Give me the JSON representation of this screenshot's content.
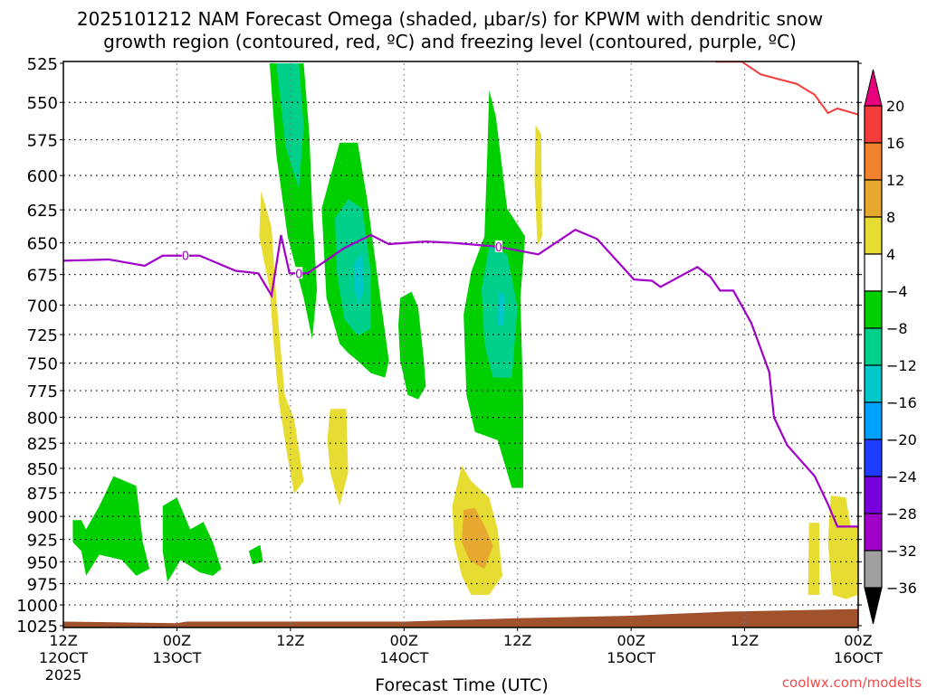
{
  "chart_data": {
    "type": "area",
    "title_line1": "2025101212 NAM Forecast Omega (shaded, μbar/s) for KPWM with dendritic snow",
    "title_line2": "growth region (contoured, red, ºC) and freezing level (contoured, purple, ºC)",
    "xlabel": "Forecast Time (UTC)",
    "credit": "coolwx.com/modelts",
    "xlim_hours": [
      0,
      84
    ],
    "ylim_hPa": [
      525,
      1025
    ],
    "y_scale": "log-pressure, inverted",
    "grid": true,
    "y_ticks": [
      525,
      550,
      575,
      600,
      625,
      650,
      675,
      700,
      725,
      750,
      775,
      800,
      825,
      850,
      875,
      900,
      925,
      950,
      975,
      1000,
      1025
    ],
    "x_ticks": [
      {
        "hour": 0,
        "l1": "12Z",
        "l2": "12OCT",
        "l3": "2025"
      },
      {
        "hour": 12,
        "l1": "00Z",
        "l2": "13OCT"
      },
      {
        "hour": 24,
        "l1": "12Z"
      },
      {
        "hour": 36,
        "l1": "00Z",
        "l2": "14OCT"
      },
      {
        "hour": 48,
        "l1": "12Z"
      },
      {
        "hour": 60,
        "l1": "00Z",
        "l2": "15OCT"
      },
      {
        "hour": 72,
        "l1": "12Z"
      },
      {
        "hour": 84,
        "l1": "00Z",
        "l2": "16OCT"
      }
    ],
    "colorbar": {
      "labels": [
        "20",
        "16",
        "12",
        "8",
        "4",
        "-4",
        "-8",
        "-12",
        "-16",
        "-20",
        "-24",
        "-28",
        "-32",
        "-36"
      ],
      "over_color": "#e8007f",
      "under_color": "#000000",
      "colors": [
        "#f53c3c",
        "#f0832b",
        "#e6a82e",
        "#e6dc32",
        "#ffffff",
        "#00d000",
        "#00d08a",
        "#00c8c8",
        "#00a0ff",
        "#1e3cff",
        "#7800dc",
        "#a000c8",
        "#a0a0a0"
      ]
    },
    "omega_regions": [
      {
        "value": -6,
        "points": [
          [
            21.8,
            525
          ],
          [
            25.4,
            525
          ],
          [
            26.0,
            572
          ],
          [
            26.3,
            624
          ],
          [
            26.8,
            687
          ],
          [
            26.3,
            729
          ],
          [
            25.4,
            694
          ],
          [
            23.7,
            645
          ],
          [
            22.5,
            585
          ]
        ]
      },
      {
        "value": -10,
        "points": [
          [
            22.5,
            525
          ],
          [
            24.9,
            525
          ],
          [
            25.4,
            566
          ],
          [
            24.9,
            610
          ],
          [
            23.5,
            580
          ]
        ]
      },
      {
        "value": -6,
        "points": [
          [
            27.3,
            624
          ],
          [
            29.2,
            577
          ],
          [
            31.1,
            577
          ],
          [
            32.1,
            617
          ],
          [
            33.5,
            694
          ],
          [
            34.4,
            748
          ],
          [
            34.0,
            763
          ],
          [
            32.5,
            759
          ],
          [
            31.1,
            748
          ],
          [
            30.1,
            741
          ],
          [
            29.2,
            733
          ],
          [
            27.8,
            694
          ]
        ]
      },
      {
        "value": -10,
        "points": [
          [
            28.7,
            631
          ],
          [
            30.1,
            617
          ],
          [
            31.6,
            624
          ],
          [
            32.5,
            673
          ],
          [
            32.5,
            720
          ],
          [
            31.1,
            726
          ],
          [
            29.7,
            712
          ],
          [
            28.9,
            673
          ]
        ]
      },
      {
        "value": -14,
        "points": [
          [
            30.8,
            665
          ],
          [
            31.6,
            658
          ],
          [
            31.8,
            687
          ],
          [
            31.2,
            699
          ],
          [
            30.8,
            687
          ]
        ]
      },
      {
        "value": -6,
        "points": [
          [
            35.6,
            694
          ],
          [
            36.8,
            689
          ],
          [
            37.5,
            702
          ],
          [
            38.1,
            748
          ],
          [
            38.3,
            771
          ],
          [
            37.5,
            783
          ],
          [
            36.4,
            779
          ],
          [
            35.6,
            748
          ],
          [
            35.4,
            717
          ]
        ]
      },
      {
        "value": -6,
        "points": [
          [
            45.0,
            542
          ],
          [
            45.7,
            559
          ],
          [
            46.9,
            624
          ],
          [
            48.8,
            645
          ],
          [
            48.3,
            694
          ],
          [
            48.6,
            786
          ],
          [
            48.6,
            870
          ],
          [
            47.4,
            870
          ],
          [
            46.9,
            854
          ],
          [
            45.9,
            822
          ],
          [
            43.5,
            814
          ],
          [
            42.6,
            779
          ],
          [
            42.3,
            708
          ],
          [
            43.1,
            673
          ],
          [
            44.5,
            645
          ],
          [
            44.8,
            585
          ]
        ]
      },
      {
        "value": -10,
        "points": [
          [
            45.0,
            652
          ],
          [
            46.9,
            659
          ],
          [
            48.0,
            702
          ],
          [
            47.4,
            763
          ],
          [
            45.4,
            763
          ],
          [
            44.5,
            733
          ],
          [
            44.2,
            687
          ]
        ]
      },
      {
        "value": -14,
        "points": [
          [
            46.0,
            687
          ],
          [
            46.7,
            694
          ],
          [
            46.5,
            717
          ],
          [
            45.9,
            717
          ]
        ]
      },
      {
        "value": -6,
        "points": [
          [
            1.0,
            904
          ],
          [
            1.9,
            904
          ],
          [
            2.4,
            914
          ],
          [
            3.8,
            889
          ],
          [
            5.3,
            858
          ],
          [
            7.7,
            868
          ],
          [
            8.4,
            928
          ],
          [
            9.1,
            958
          ],
          [
            7.7,
            966
          ],
          [
            6.2,
            948
          ],
          [
            3.8,
            942
          ],
          [
            2.4,
            966
          ],
          [
            1.9,
            938
          ],
          [
            1.0,
            928
          ]
        ]
      },
      {
        "value": -6,
        "points": [
          [
            10.5,
            889
          ],
          [
            12.0,
            880
          ],
          [
            13.4,
            914
          ],
          [
            14.8,
            906
          ],
          [
            15.8,
            928
          ],
          [
            16.7,
            958
          ],
          [
            15.8,
            966
          ],
          [
            14.4,
            962
          ],
          [
            12.4,
            948
          ],
          [
            11.0,
            973
          ],
          [
            10.5,
            938
          ]
        ]
      },
      {
        "value": -6,
        "points": [
          [
            19.6,
            938
          ],
          [
            20.8,
            931
          ],
          [
            21.1,
            950
          ],
          [
            20.0,
            953
          ]
        ]
      },
      {
        "value": 6,
        "points": [
          [
            20.9,
            611
          ],
          [
            22.0,
            638
          ],
          [
            22.5,
            694
          ],
          [
            23.4,
            779
          ],
          [
            24.4,
            802
          ],
          [
            25.4,
            863
          ],
          [
            24.4,
            876
          ],
          [
            23.7,
            839
          ],
          [
            22.8,
            786
          ],
          [
            22.3,
            741
          ],
          [
            21.8,
            687
          ],
          [
            20.7,
            645
          ]
        ]
      },
      {
        "value": 6,
        "points": [
          [
            28.2,
            792
          ],
          [
            29.9,
            792
          ],
          [
            30.1,
            854
          ],
          [
            29.2,
            889
          ],
          [
            28.2,
            854
          ],
          [
            27.9,
            822
          ]
        ]
      },
      {
        "value": 6,
        "points": [
          [
            42.1,
            847
          ],
          [
            43.1,
            863
          ],
          [
            45.0,
            880
          ],
          [
            45.9,
            914
          ],
          [
            46.4,
            966
          ],
          [
            45.0,
            988
          ],
          [
            43.1,
            988
          ],
          [
            42.1,
            966
          ],
          [
            41.3,
            928
          ],
          [
            41.1,
            889
          ]
        ]
      },
      {
        "value": 10,
        "points": [
          [
            42.3,
            893
          ],
          [
            43.5,
            891
          ],
          [
            44.5,
            910
          ],
          [
            45.4,
            932
          ],
          [
            44.5,
            958
          ],
          [
            42.9,
            948
          ],
          [
            42.1,
            928
          ]
        ]
      },
      {
        "value": 6,
        "points": [
          [
            49.9,
            565
          ],
          [
            50.5,
            571
          ],
          [
            50.6,
            645
          ],
          [
            50.1,
            652
          ],
          [
            49.8,
            604
          ]
        ]
      },
      {
        "value": 6,
        "points": [
          [
            78.8,
            907
          ],
          [
            79.9,
            907
          ],
          [
            79.9,
            988
          ],
          [
            78.7,
            988
          ]
        ]
      },
      {
        "value": 6,
        "points": [
          [
            81.1,
            878
          ],
          [
            82.7,
            880
          ],
          [
            83.2,
            911
          ],
          [
            84,
            912
          ],
          [
            84,
            988
          ],
          [
            82.7,
            993
          ],
          [
            81.3,
            988
          ],
          [
            80.8,
            928
          ]
        ]
      }
    ],
    "freezing_level": {
      "label": "0",
      "color": "#a000c8",
      "label_hours": [
        12.9,
        24.9,
        46.0
      ],
      "points": [
        [
          0,
          664
        ],
        [
          4.8,
          663
        ],
        [
          8.6,
          668
        ],
        [
          10.5,
          660
        ],
        [
          14.4,
          660
        ],
        [
          18.2,
          672
        ],
        [
          20.6,
          674
        ],
        [
          22.0,
          692
        ],
        [
          23.0,
          644
        ],
        [
          23.9,
          674
        ],
        [
          25.8,
          674
        ],
        [
          29.7,
          654
        ],
        [
          32.5,
          644
        ],
        [
          34.4,
          651
        ],
        [
          38.3,
          649
        ],
        [
          41.1,
          650
        ],
        [
          45.9,
          653
        ],
        [
          50.2,
          659
        ],
        [
          54.1,
          640
        ],
        [
          56.4,
          647
        ],
        [
          60.3,
          679
        ],
        [
          62.2,
          680
        ],
        [
          63.1,
          685
        ],
        [
          67.0,
          669
        ],
        [
          68.4,
          677
        ],
        [
          69.4,
          688
        ],
        [
          70.8,
          688
        ],
        [
          72.7,
          715
        ],
        [
          74.6,
          758
        ],
        [
          75.1,
          800
        ],
        [
          76.5,
          827
        ],
        [
          79.4,
          858
        ],
        [
          80.8,
          887
        ],
        [
          81.8,
          911
        ],
        [
          84,
          911
        ]
      ]
    },
    "dendritic_contour": {
      "color": "#f53c3c",
      "points": [
        [
          68.9,
          524
        ],
        [
          71.7,
          524
        ],
        [
          73.7,
          532
        ],
        [
          77.5,
          538
        ],
        [
          79.4,
          545
        ],
        [
          80.8,
          557
        ],
        [
          81.8,
          554
        ],
        [
          84,
          558
        ]
      ]
    },
    "ground": {
      "color": "#a0522d",
      "points": [
        [
          0,
          1020
        ],
        [
          12,
          1022
        ],
        [
          13,
          1020
        ],
        [
          36,
          1020
        ],
        [
          48,
          1016
        ],
        [
          60,
          1013
        ],
        [
          70,
          1008
        ],
        [
          84,
          1005
        ]
      ]
    }
  }
}
